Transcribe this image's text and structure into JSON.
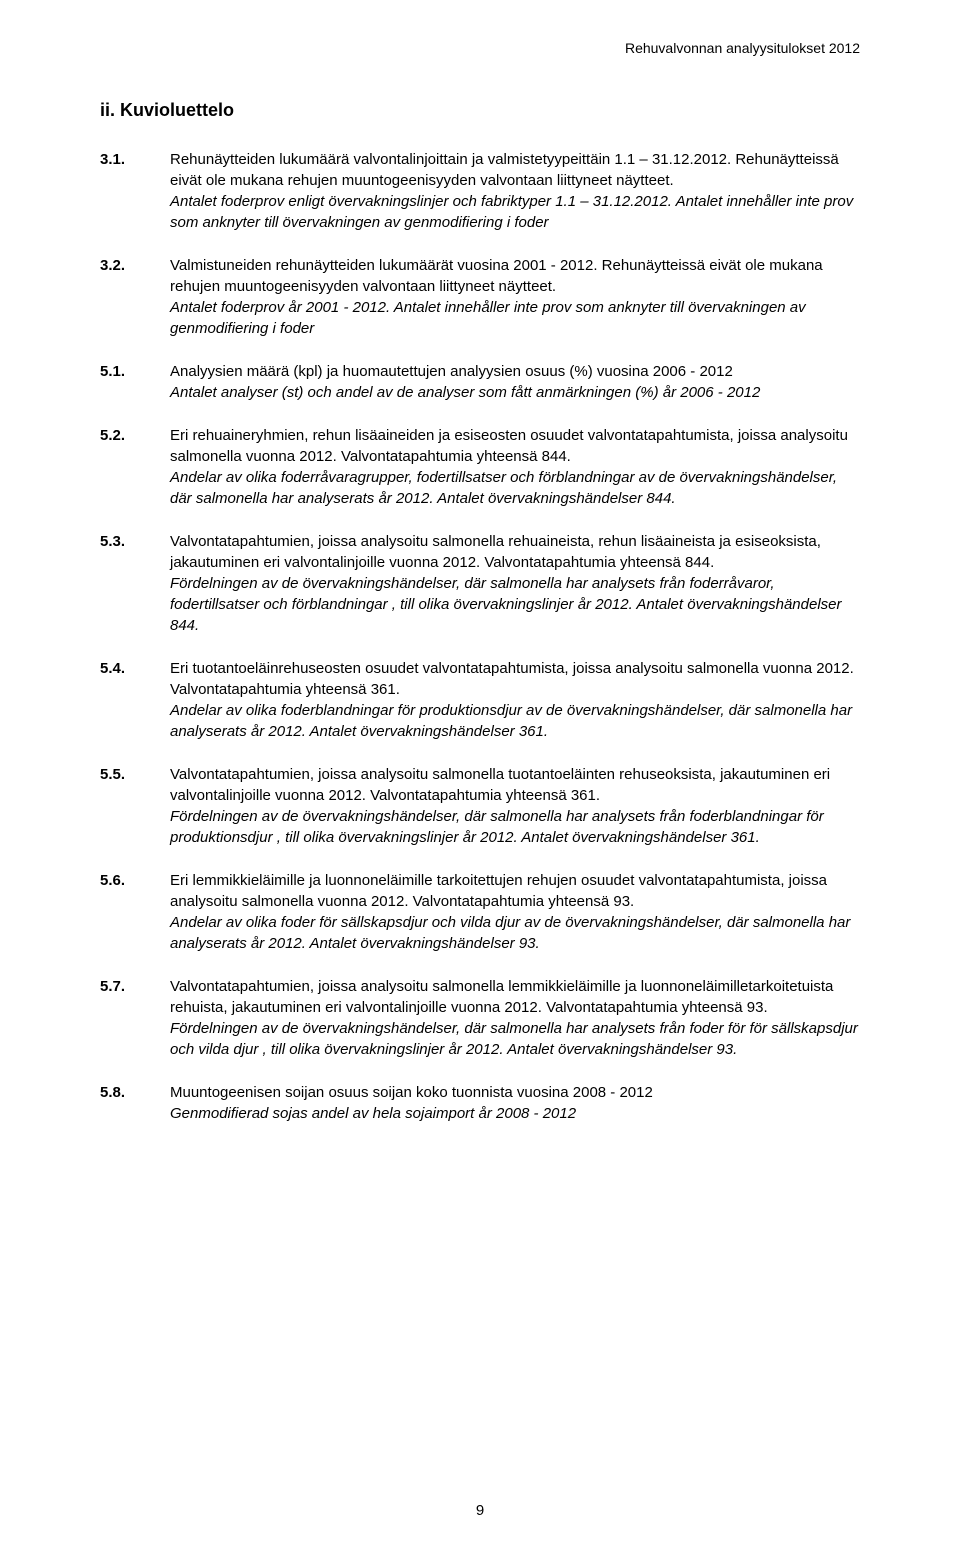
{
  "header": {
    "right": "Rehuvalvonnan analyysitulokset 2012"
  },
  "title": "ii. Kuvioluettelo",
  "entries": [
    {
      "num": "3.1.",
      "reg": "Rehunäytteiden lukumäärä valvontalinjoittain ja valmistetyypeittäin 1.1 – 31.12.2012. Rehunäytteissä eivät ole mukana rehujen muuntogeenisyyden valvontaan liittyneet näytteet.",
      "ital": "Antalet foderprov enligt övervakningslinjer och fabriktyper 1.1 – 31.12.2012. Antalet innehåller inte prov som anknyter till övervakningen av genmodifiering i foder"
    },
    {
      "num": "3.2.",
      "reg": "Valmistuneiden rehunäytteiden lukumäärät vuosina 2001 - 2012. Rehunäytteissä eivät ole mukana rehujen muuntogeenisyyden valvontaan liittyneet näytteet.",
      "ital": "Antalet foderprov år 2001 - 2012. Antalet innehåller inte prov som anknyter till övervakningen av genmodifiering i foder"
    },
    {
      "num": "5.1.",
      "reg": "Analyysien määrä (kpl) ja huomautettujen analyysien osuus (%) vuosina 2006 - 2012",
      "ital": "Antalet analyser (st) och andel av de analyser som fått anmärkningen (%) år 2006 - 2012"
    },
    {
      "num": "5.2.",
      "reg": "Eri rehuaineryhmien, rehun lisäaineiden ja esiseosten osuudet valvontatapahtumista, joissa analysoitu salmonella vuonna 2012. Valvontatapahtumia yhteensä 844.",
      "ital": "Andelar av olika foderråvaragrupper, fodertillsatser och förblandningar av de övervakningshändelser, där salmonella har analyserats år 2012. Antalet övervakningshändelser 844."
    },
    {
      "num": "5.3.",
      "reg": "Valvontatapahtumien, joissa analysoitu salmonella rehuaineista, rehun lisäaineista ja esiseoksista, jakautuminen eri valvontalinjoille vuonna 2012. Valvontatapahtumia yhteensä 844.",
      "ital": "Fördelningen av de övervakningshändelser, där salmonella har analysets från foderråvaror, fodertillsatser och förblandningar , till olika övervakningslinjer år 2012. Antalet övervakningshändelser 844."
    },
    {
      "num": "5.4.",
      "reg": "Eri tuotantoeläinrehuseosten osuudet valvontatapahtumista, joissa analysoitu salmonella vuonna 2012. Valvontatapahtumia yhteensä 361.",
      "ital": "Andelar av olika foderblandningar för produktionsdjur av de övervakningshändelser, där salmonella har analyserats år 2012. Antalet övervakningshändelser 361."
    },
    {
      "num": "5.5.",
      "reg": "Valvontatapahtumien, joissa analysoitu salmonella tuotantoeläinten rehuseoksista, jakautuminen eri valvontalinjoille vuonna 2012. Valvontatapahtumia yhteensä 361.",
      "ital": "Fördelningen av de övervakningshändelser, där salmonella har analysets från foderblandningar för produktionsdjur , till olika övervakningslinjer år 2012. Antalet övervakningshändelser 361."
    },
    {
      "num": "5.6.",
      "reg": "Eri lemmikkieläimille ja luonnoneläimille tarkoitettujen rehujen osuudet valvontatapahtumista, joissa analysoitu salmonella vuonna 2012. Valvontatapahtumia yhteensä 93.",
      "ital": "Andelar av olika foder för sällskapsdjur och vilda djur av de övervakningshändelser, där salmonella har analyserats år 2012. Antalet övervakningshändelser 93."
    },
    {
      "num": "5.7.",
      "reg": "Valvontatapahtumien, joissa analysoitu salmonella lemmikkieläimille ja luonnoneläimilletarkoitetuista rehuista, jakautuminen eri valvontalinjoille vuonna 2012. Valvontatapahtumia yhteensä 93.",
      "ital": "Fördelningen av de övervakningshändelser, där salmonella har analysets från foder för för sällskapsdjur och vilda djur , till olika övervakningslinjer år 2012. Antalet övervakningshändelser 93."
    },
    {
      "num": "5.8.",
      "reg": "Muuntogeenisen soijan osuus soijan koko tuonnista vuosina 2008 - 2012",
      "ital": "Genmodifierad sojas andel av hela sojaimport år 2008 - 2012"
    }
  ],
  "pageNumber": "9",
  "colors": {
    "text": "#000000",
    "background": "#ffffff"
  }
}
